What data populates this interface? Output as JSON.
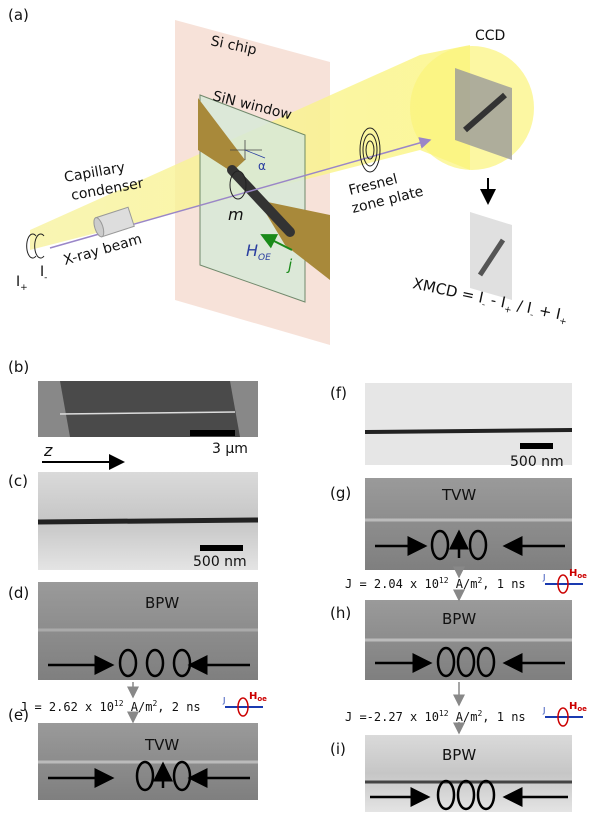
{
  "panel_a": {
    "label": "(a)",
    "si_chip": "Si chip",
    "sin_window": "SiN window",
    "ccd": "CCD",
    "capillary": [
      "Capillary",
      "condenser"
    ],
    "xray_beam": "X-ray beam",
    "i_plus": [
      "I",
      "+"
    ],
    "i_minus": [
      "I",
      "-"
    ],
    "m": "m",
    "alpha": "α",
    "h_oe": [
      "H",
      "OE"
    ],
    "j": "j",
    "fresnel": [
      "Fresnel",
      "zone plate"
    ],
    "formula": [
      "XMCD = I",
      "-",
      " - I",
      "+",
      " / I",
      "-",
      " + I",
      "+"
    ]
  },
  "panel_b": {
    "label": "(b)",
    "scale": "3 μm",
    "axis": "z"
  },
  "panel_c": {
    "label": "(c)",
    "scale": "500 nm"
  },
  "panel_d": {
    "label": "(d)",
    "wall": "BPW"
  },
  "current_1": {
    "parts": [
      "J = 2.62 x 10",
      "12",
      " A/m",
      "2",
      ", 2 ns"
    ],
    "j": "J",
    "h": [
      "H",
      "oe"
    ]
  },
  "panel_e": {
    "label": "(e)",
    "wall": "TVW"
  },
  "panel_f": {
    "label": "(f)",
    "scale": "500 nm"
  },
  "panel_g": {
    "label": "(g)",
    "wall": "TVW"
  },
  "current_2": {
    "parts": [
      "J = 2.04 x 10",
      "12",
      " A/m",
      "2",
      ", 1 ns"
    ],
    "j": "J",
    "h": [
      "H",
      "oe"
    ]
  },
  "panel_h": {
    "label": "(h)",
    "wall": "BPW"
  },
  "current_3": {
    "parts": [
      "J =-2.27 x 10",
      "12",
      " A/m",
      "2",
      ", 1 ns"
    ],
    "j": "J",
    "h": [
      "H",
      "oe"
    ]
  },
  "panel_i": {
    "label": "(i)",
    "wall": "BPW"
  }
}
